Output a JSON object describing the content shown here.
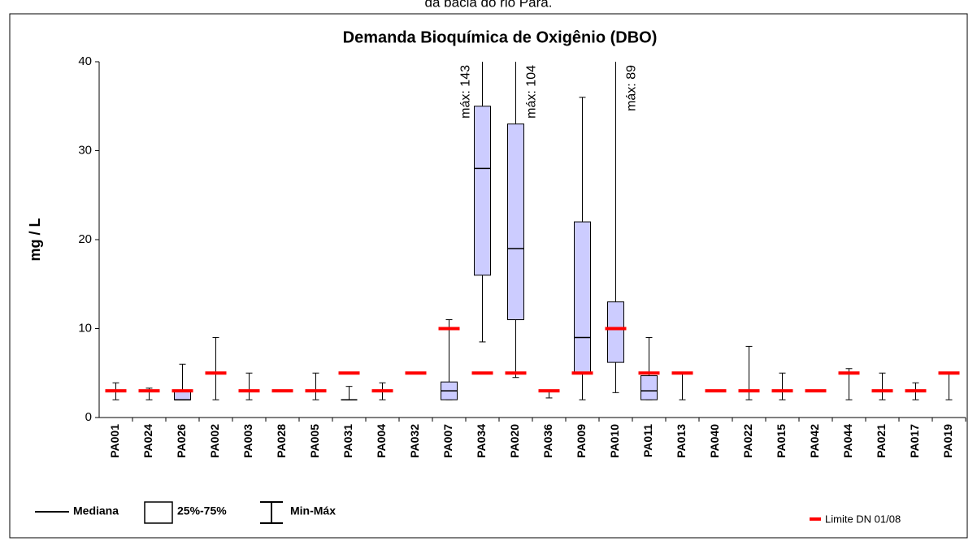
{
  "subtitle": "da bacia do rio Pará.",
  "chart_data": {
    "type": "box",
    "title": "Demanda Bioquímica de Oxigênio (DBO)",
    "y_label": "mg / L",
    "categories": [
      "PA001",
      "PA024",
      "PA026",
      "PA002",
      "PA003",
      "PA028",
      "PA005",
      "PA031",
      "PA004",
      "PA032",
      "PA007",
      "PA034",
      "PA020",
      "PA036",
      "PA009",
      "PA010",
      "PA011",
      "PA013",
      "PA040",
      "PA022",
      "PA015",
      "PA042",
      "PA044",
      "PA021",
      "PA017",
      "PA019"
    ],
    "min": [
      2,
      2,
      2,
      2,
      2,
      3,
      2,
      2,
      2,
      5,
      2,
      8.5,
      4.5,
      2.2,
      2,
      2.8,
      2,
      2,
      3,
      2,
      2,
      3,
      2,
      2,
      2,
      2
    ],
    "q1": [
      3,
      3,
      2,
      5,
      3,
      3,
      3,
      2,
      3,
      5,
      2,
      16,
      11,
      3,
      5,
      6.2,
      2,
      5,
      3,
      3,
      3,
      3,
      5,
      3,
      3,
      5
    ],
    "median": [
      3,
      3,
      2,
      5,
      3,
      3,
      3,
      2,
      3,
      5,
      3,
      28,
      19,
      3,
      9,
      10,
      3,
      5,
      3,
      3,
      3,
      3,
      5,
      3,
      3,
      5
    ],
    "q3": [
      3,
      3,
      3,
      5,
      3,
      3,
      3,
      2,
      3,
      5,
      4,
      35,
      33,
      3,
      22,
      13,
      4.7,
      5,
      3,
      3,
      3,
      3,
      5,
      3,
      3,
      5
    ],
    "max": [
      3.9,
      3.3,
      6,
      9,
      5,
      3,
      5,
      3.5,
      3.9,
      5,
      11,
      143,
      104,
      3,
      36,
      89,
      9,
      5,
      3,
      8,
      5,
      3,
      5.5,
      5,
      3.9,
      5
    ],
    "box_color": "#ccccff",
    "limit": {
      "name": "Limite DN 01/08",
      "color": "#ff0000",
      "values": [
        3,
        3,
        3,
        5,
        3,
        3,
        3,
        5,
        3,
        5,
        10,
        5,
        5,
        3,
        5,
        10,
        5,
        5,
        3,
        3,
        3,
        3,
        5,
        3,
        3,
        5
      ]
    },
    "legend": {
      "median": "Mediana",
      "box": "25%-75%",
      "whisker": "Min-Máx"
    },
    "annotations": [
      {
        "text": "máx: 143",
        "category": "PA034",
        "side": "left"
      },
      {
        "text": "máx: 104",
        "category": "PA020",
        "side": "right"
      },
      {
        "text": "máx: 89",
        "category": "PA010",
        "side": "right"
      }
    ],
    "ylim": [
      0,
      40
    ],
    "yticks": [
      0,
      10,
      20,
      30,
      40
    ],
    "grid": false
  }
}
